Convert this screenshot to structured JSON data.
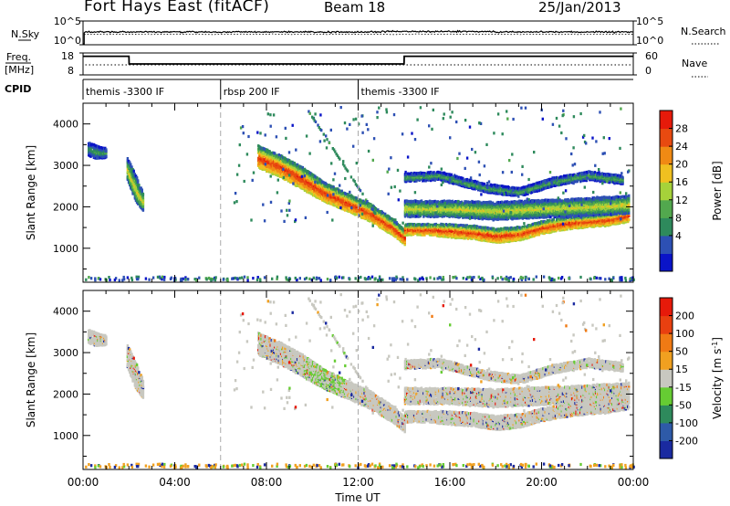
{
  "header": {
    "site_title": "Fort Hays East (fitACF)",
    "beam": "Beam 18",
    "date": "25/Jan/2013"
  },
  "status_panels": {
    "nsky_label": "N.Sky",
    "nsearch_label": "N.Search",
    "nsky_ticks": [
      "10^5",
      "10^0"
    ],
    "nsearch_ticks": [
      "10^5",
      "10^0"
    ],
    "freq_label": [
      "Freq.",
      "[MHz]"
    ],
    "freq_ticks": [
      "18",
      "8"
    ],
    "nave_label": "Nave",
    "nave_ticks": [
      "60",
      "0"
    ],
    "cpid_label": "CPID",
    "cpid_segments": [
      {
        "label": "themis -3300 IF",
        "start_hour": 0.0,
        "end_hour": 6.0
      },
      {
        "label": "rbsp 200 IF",
        "start_hour": 6.0,
        "end_hour": 12.0
      },
      {
        "label": "themis -3300 IF",
        "start_hour": 12.0,
        "end_hour": 24.0
      }
    ],
    "freq_series": {
      "hours": [
        0.0,
        0.2,
        2.0,
        2.01,
        14.0,
        14.01,
        24.0
      ],
      "mhz": [
        16.5,
        16.5,
        16.5,
        13.0,
        13.0,
        16.5,
        16.5
      ]
    }
  },
  "power_panel": {
    "ylabel": "Slant Range [km]",
    "yticks": [
      "4000",
      "3000",
      "2000",
      "1000"
    ],
    "colorbar_label": "Power [dB]",
    "colorbar_ticks": [
      "28",
      "24",
      "20",
      "16",
      "12",
      "8",
      "4"
    ],
    "colors": [
      "#0a14c8",
      "#2d50b4",
      "#2e8a5c",
      "#52a84e",
      "#a6d23a",
      "#f0c020",
      "#f08a14",
      "#e84a10",
      "#e61a0a"
    ]
  },
  "velocity_panel": {
    "ylabel": "Slant Range [km]",
    "yticks": [
      "4000",
      "3000",
      "2000",
      "1000"
    ],
    "colorbar_label": "Velocity [m s",
    "colorbar_label_sup": "-1",
    "colorbar_label_end": "]",
    "colorbar_ticks": [
      "200",
      "100",
      "50",
      "15",
      "-15",
      "-50",
      "-100",
      "-200"
    ],
    "colors": [
      "#1a2aa0",
      "#2e5aa8",
      "#2e8a5c",
      "#66cc33",
      "#c8c8c0",
      "#f0a020",
      "#f07a14",
      "#e84010",
      "#e61a0a"
    ]
  },
  "time_axis": {
    "xlabel": "Time UT",
    "ticks": [
      "00:00",
      "04:00",
      "08:00",
      "12:00",
      "16:00",
      "20:00",
      "00:00"
    ]
  },
  "chart_data": {
    "type": "heatmap",
    "title": "Fort Hays East (fitACF)",
    "subtitle": "Beam 18",
    "date": "25/Jan/2013",
    "x_range_hours": [
      0,
      24
    ],
    "y_range_km": [
      180,
      4500
    ],
    "xlabel": "Time UT",
    "ylabel": "Slant Range [km]",
    "mode_boundaries_hours": [
      6,
      12
    ],
    "power_bands": [
      {
        "hours": [
          7.6,
          8.5,
          9.5,
          10.5,
          11.5,
          12.5,
          13.5,
          14.0
        ],
        "center_km": [
          3200,
          3000,
          2700,
          2350,
          2100,
          1850,
          1500,
          1250
        ],
        "half_width_km": [
          250,
          250,
          250,
          220,
          200,
          200,
          180,
          170
        ],
        "peak_db": 28
      },
      {
        "hours": [
          14.0,
          15.0,
          16.0,
          17.0,
          18.0,
          19.0,
          20.0,
          21.0,
          22.0,
          23.0,
          23.8
        ],
        "center_km": [
          1450,
          1450,
          1420,
          1380,
          1300,
          1350,
          1500,
          1600,
          1650,
          1700,
          1800
        ],
        "half_width_km": [
          120,
          120,
          150,
          150,
          160,
          150,
          140,
          140,
          130,
          130,
          150
        ],
        "peak_db": 28
      },
      {
        "hours": [
          14.0,
          16.0,
          18.0,
          20.0,
          22.0,
          23.8
        ],
        "center_km": [
          1950,
          1950,
          1900,
          1950,
          2000,
          2050
        ],
        "half_width_km": [
          180,
          180,
          200,
          200,
          200,
          200
        ],
        "peak_db": 18
      },
      {
        "hours": [
          14.0,
          15.5,
          17.5,
          19.0,
          20.5,
          22.0,
          23.5
        ],
        "center_km": [
          2700,
          2750,
          2450,
          2350,
          2600,
          2750,
          2650
        ],
        "half_width_km": [
          90,
          90,
          90,
          90,
          90,
          90,
          90
        ],
        "peak_db": 12
      },
      {
        "hours": [
          1.9,
          2.1,
          2.3,
          2.6
        ],
        "center_km": [
          2900,
          2650,
          2400,
          2100
        ],
        "half_width_km": [
          250,
          300,
          300,
          200
        ],
        "peak_db": 18
      },
      {
        "hours": [
          0.2,
          0.6,
          1.0
        ],
        "center_km": [
          3400,
          3300,
          3300
        ],
        "half_width_km": [
          150,
          150,
          100
        ],
        "peak_db": 10
      }
    ],
    "velocity_note": "Velocities predominantly near zero (-15 to 15 m/s, grey) with scattered positive and negative returns"
  }
}
